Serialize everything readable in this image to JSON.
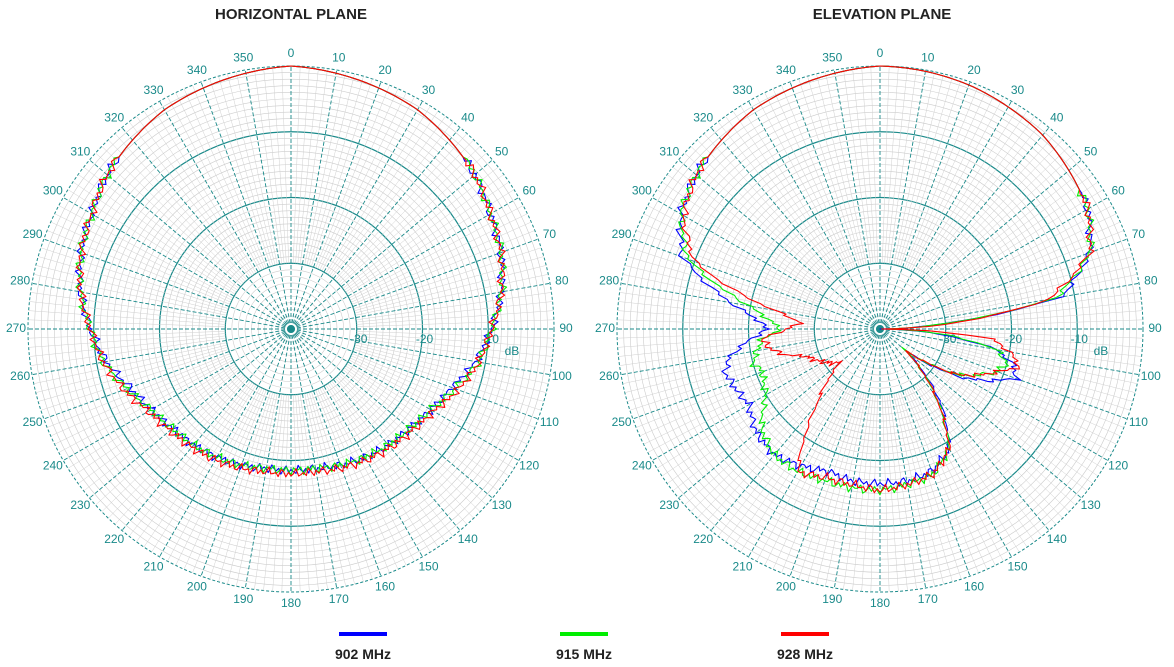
{
  "chart_data": [
    {
      "type": "polar",
      "title": "HORIZONTAL PLANE",
      "radial_unit": "dB",
      "radial_range": [
        -40,
        0
      ],
      "radial_tick_labels": [
        "-30",
        "-20",
        "-10"
      ],
      "angle_tick_labels": [
        "0",
        "10",
        "20",
        "30",
        "40",
        "50",
        "60",
        "70",
        "80",
        "90",
        "100",
        "110",
        "120",
        "130",
        "140",
        "150",
        "160",
        "170",
        "180",
        "190",
        "200",
        "210",
        "220",
        "230",
        "240",
        "250",
        "260",
        "270",
        "280",
        "290",
        "300",
        "310",
        "320",
        "330",
        "340",
        "350"
      ],
      "angle_unit": "deg",
      "grid": true,
      "series": [
        {
          "name": "902 MHz",
          "color": "#0000ff",
          "angles": [
            0,
            10,
            20,
            30,
            40,
            50,
            60,
            70,
            80,
            90,
            100,
            110,
            120,
            130,
            140,
            150,
            160,
            170,
            180,
            190,
            200,
            210,
            220,
            230,
            240,
            250,
            260,
            270,
            280,
            290,
            300,
            310,
            320,
            330,
            340,
            350
          ],
          "values": [
            0,
            -0.5,
            -1,
            -1.5,
            -2.5,
            -3.5,
            -5,
            -6,
            -7.5,
            -9.5,
            -11.5,
            -14,
            -15.5,
            -16.5,
            -17,
            -17.5,
            -18,
            -18.5,
            -18.5,
            -18.5,
            -18,
            -17.5,
            -17,
            -16.5,
            -15.5,
            -14,
            -11.5,
            -9.5,
            -7.5,
            -6,
            -5,
            -3.5,
            -2.5,
            -1.5,
            -1,
            -0.5
          ]
        },
        {
          "name": "915 MHz",
          "color": "#00ee00",
          "angles": [
            0,
            10,
            20,
            30,
            40,
            50,
            60,
            70,
            80,
            90,
            100,
            110,
            120,
            130,
            140,
            150,
            160,
            170,
            180,
            190,
            200,
            210,
            220,
            230,
            240,
            250,
            260,
            270,
            280,
            290,
            300,
            310,
            320,
            330,
            340,
            350
          ],
          "values": [
            0,
            -0.5,
            -1,
            -1.5,
            -2.5,
            -3.5,
            -5,
            -6,
            -7.5,
            -9.5,
            -11,
            -13.5,
            -15.5,
            -16.5,
            -17,
            -17.5,
            -18,
            -18.5,
            -18.5,
            -18.5,
            -18,
            -17.5,
            -17,
            -16.5,
            -15.5,
            -13.5,
            -11,
            -9.5,
            -7.5,
            -6,
            -5,
            -3.5,
            -2.5,
            -1.5,
            -1,
            -0.5
          ]
        },
        {
          "name": "928 MHz",
          "color": "#ff0000",
          "angles": [
            0,
            10,
            20,
            30,
            40,
            50,
            60,
            70,
            80,
            90,
            100,
            110,
            120,
            130,
            140,
            150,
            160,
            170,
            180,
            190,
            200,
            210,
            220,
            230,
            240,
            250,
            260,
            270,
            280,
            290,
            300,
            310,
            320,
            330,
            340,
            350
          ],
          "values": [
            0,
            -0.5,
            -1,
            -1.5,
            -2.5,
            -3.5,
            -5,
            -6,
            -7.5,
            -9.5,
            -11,
            -13,
            -15,
            -16,
            -16.5,
            -17,
            -17.5,
            -18,
            -18,
            -18,
            -17.5,
            -17,
            -16.5,
            -16,
            -15,
            -13,
            -11,
            -9.5,
            -7.5,
            -6,
            -5,
            -3.5,
            -2.5,
            -1.5,
            -1,
            -0.5
          ]
        }
      ]
    },
    {
      "type": "polar",
      "title": "ELEVATION PLANE",
      "radial_unit": "dB",
      "radial_range": [
        -40,
        0
      ],
      "radial_tick_labels": [
        "-30",
        "-20",
        "-10"
      ],
      "angle_tick_labels": [
        "0",
        "10",
        "20",
        "30",
        "40",
        "50",
        "60",
        "70",
        "80",
        "90",
        "100",
        "110",
        "120",
        "130",
        "140",
        "150",
        "160",
        "170",
        "180",
        "190",
        "200",
        "210",
        "220",
        "230",
        "240",
        "250",
        "260",
        "270",
        "280",
        "290",
        "300",
        "310",
        "320",
        "330",
        "340",
        "350"
      ],
      "angle_unit": "deg",
      "grid": true,
      "series": [
        {
          "name": "902 MHz",
          "color": "#0000ff",
          "angles": [
            0,
            10,
            20,
            30,
            40,
            50,
            60,
            70,
            80,
            85,
            90,
            95,
            100,
            105,
            110,
            120,
            130,
            140,
            150,
            160,
            170,
            180,
            190,
            200,
            210,
            220,
            230,
            240,
            250,
            255,
            260,
            265,
            270,
            275,
            280,
            290,
            300,
            310,
            320,
            330,
            340,
            350
          ],
          "values": [
            0,
            -0.2,
            -0.5,
            -1,
            -1.5,
            -2.5,
            -3.5,
            -6,
            -12,
            -30,
            -40,
            -31,
            -22,
            -19,
            -18,
            -25,
            -35,
            -26,
            -19,
            -17,
            -16.5,
            -16.5,
            -16.5,
            -17,
            -16,
            -15,
            -15.5,
            -17,
            -16,
            -15.5,
            -17,
            -20,
            -23,
            -21,
            -17,
            -8,
            -5,
            -3.5,
            -2.5,
            -1.5,
            -1,
            -0.5
          ]
        },
        {
          "name": "915 MHz",
          "color": "#00ee00",
          "angles": [
            0,
            10,
            20,
            30,
            40,
            50,
            60,
            70,
            80,
            85,
            90,
            95,
            100,
            105,
            110,
            120,
            130,
            140,
            150,
            160,
            170,
            180,
            190,
            200,
            210,
            220,
            230,
            240,
            250,
            255,
            260,
            265,
            270,
            275,
            280,
            290,
            300,
            310,
            320,
            330,
            340,
            350
          ],
          "values": [
            0,
            -0.2,
            -0.5,
            -1,
            -1.5,
            -2.5,
            -3.5,
            -6,
            -13,
            -30,
            -40,
            -30,
            -22,
            -20,
            -21,
            -26,
            -35,
            -27,
            -19,
            -16.5,
            -16,
            -15.5,
            -15.5,
            -15.5,
            -15,
            -15,
            -16.5,
            -20,
            -21,
            -20,
            -21,
            -22,
            -25,
            -23,
            -20,
            -9,
            -5,
            -3.5,
            -2.5,
            -1.5,
            -1,
            -0.5
          ]
        },
        {
          "name": "928 MHz",
          "color": "#ff0000",
          "angles": [
            0,
            10,
            20,
            30,
            40,
            50,
            60,
            70,
            80,
            85,
            90,
            95,
            100,
            105,
            110,
            120,
            130,
            140,
            150,
            160,
            170,
            180,
            190,
            200,
            210,
            220,
            230,
            240,
            250,
            255,
            260,
            265,
            270,
            275,
            280,
            290,
            300,
            310,
            320,
            330,
            340,
            350
          ],
          "values": [
            0,
            -0.2,
            -0.5,
            -1,
            -1.5,
            -2.5,
            -3.5,
            -6,
            -14,
            -28,
            -40,
            -23,
            -20,
            -18,
            -21,
            -26,
            -35,
            -27,
            -19,
            -16.5,
            -16,
            -15.5,
            -16,
            -16,
            -15,
            -25,
            -32,
            -30,
            -28,
            -25,
            -23,
            -22,
            -26,
            -28,
            -24,
            -10,
            -5.5,
            -3.5,
            -2.5,
            -1.5,
            -1,
            -0.5
          ]
        }
      ]
    }
  ],
  "legend": [
    {
      "label": "902 MHz",
      "color": "#0000ff"
    },
    {
      "label": "915 MHz",
      "color": "#00ee00"
    },
    {
      "label": "928 MHz",
      "color": "#ff0000"
    }
  ]
}
